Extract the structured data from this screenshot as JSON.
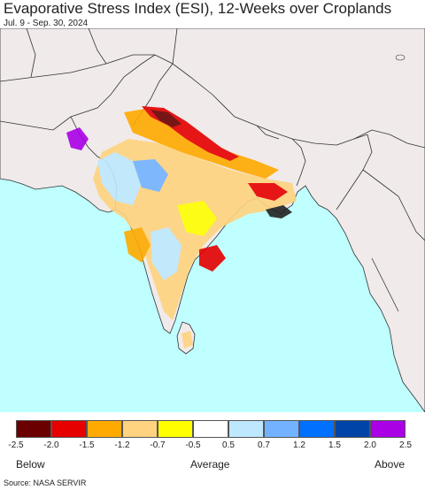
{
  "title": "Evaporative Stress Index (ESI), 12-Weeks over Croplands",
  "subtitle": "Jul. 9 - Sep. 30, 2024",
  "legend": {
    "colors": [
      "#6b0000",
      "#e60000",
      "#ffaa00",
      "#ffd37f",
      "#ffff00",
      "#ffffff",
      "#bee8ff",
      "#73b2ff",
      "#0070ff",
      "#0044a8",
      "#aa00e6"
    ],
    "ticks": [
      "-2.5",
      "-2.0",
      "-1.5",
      "-1.2",
      "-0.7",
      "-0.5",
      "0.5",
      "0.7",
      "1.2",
      "1.5",
      "2.0",
      "2.5"
    ],
    "below_label": "Below",
    "average_label": "Average",
    "above_label": "Above"
  },
  "source": "Source: NASA SERVIR",
  "map_colors": {
    "ocean": "#bfffff",
    "land": "#f0eaea",
    "border": "#333333"
  }
}
